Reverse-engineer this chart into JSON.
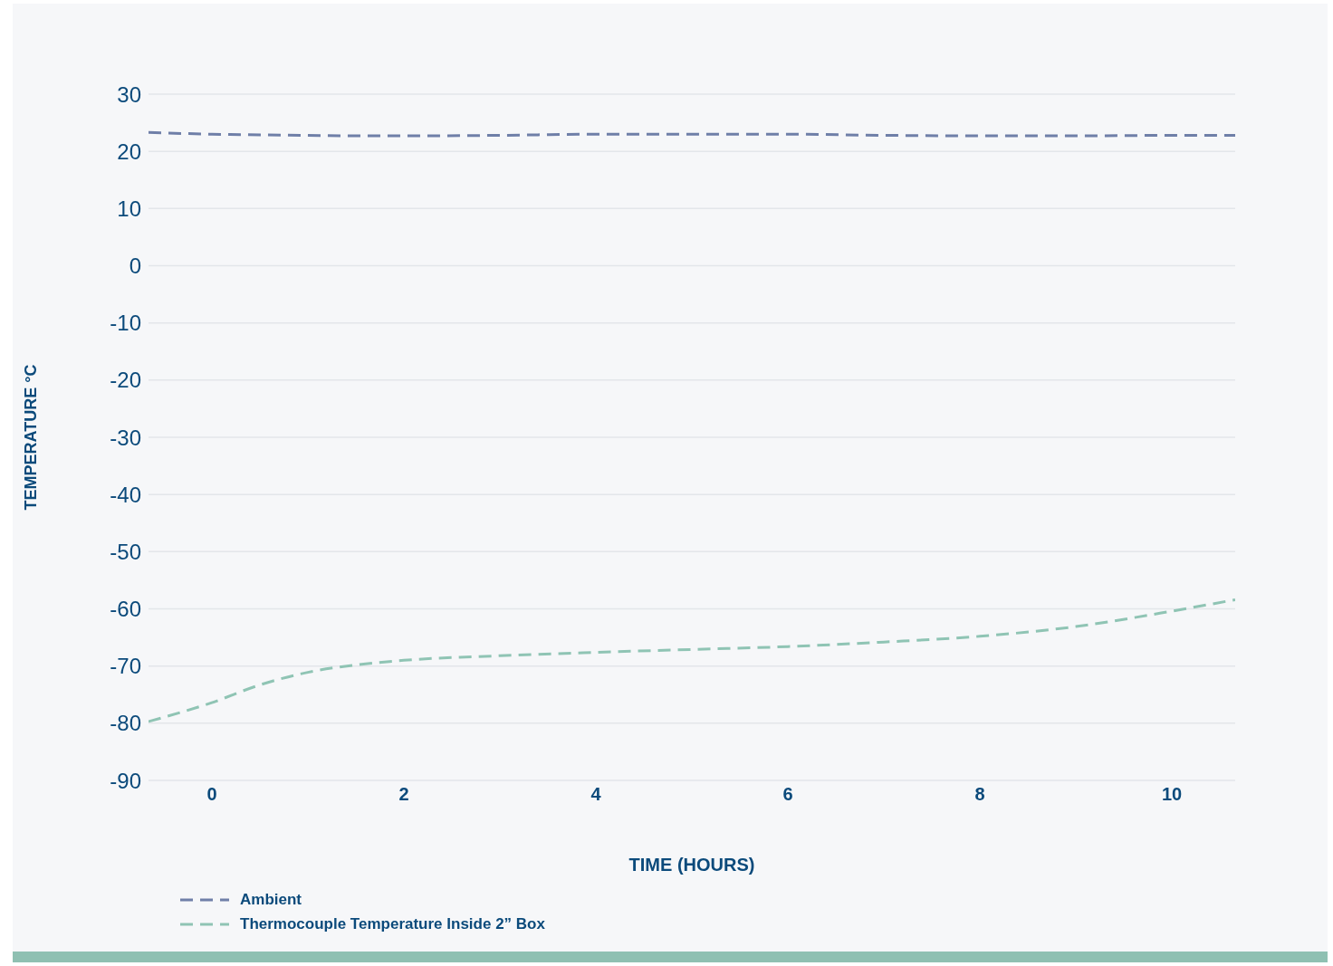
{
  "chart_data": {
    "type": "line",
    "xlabel": "TIME (HOURS)",
    "ylabel": "TEMPERATURE °C",
    "xlim": [
      -0.66,
      10.66
    ],
    "xticks": [
      0,
      2,
      4,
      6,
      8,
      10
    ],
    "ylim": [
      -90,
      30
    ],
    "yticks": [
      -90,
      -80,
      -70,
      -60,
      -50,
      -40,
      -30,
      -20,
      -10,
      0,
      10,
      20,
      30
    ],
    "grid": "y",
    "legend": "bottom left",
    "line_style": "dashed",
    "marker": "none",
    "series": [
      {
        "name": "Ambient",
        "color": "#6f7fa8",
        "x": [
          -0.66,
          0,
          1,
          1.5,
          2,
          3,
          4,
          5,
          6,
          7,
          8,
          9,
          10,
          10.66
        ],
        "values": [
          23.3,
          23.0,
          22.8,
          22.7,
          22.7,
          22.8,
          23.0,
          23.0,
          23.0,
          22.8,
          22.7,
          22.7,
          22.8,
          22.8
        ]
      },
      {
        "name": "Thermocouple Temperature Inside 2” Box",
        "color": "#8fc4b4",
        "x": [
          -0.66,
          0,
          0.5,
          1,
          1.5,
          2,
          3,
          4,
          5,
          6,
          7,
          8,
          9,
          10,
          10.66
        ],
        "values": [
          -79.7,
          -76.4,
          -73.3,
          -71.1,
          -69.8,
          -69.0,
          -68.2,
          -67.6,
          -67.1,
          -66.6,
          -65.8,
          -64.8,
          -63.1,
          -60.4,
          -58.4
        ]
      }
    ]
  }
}
